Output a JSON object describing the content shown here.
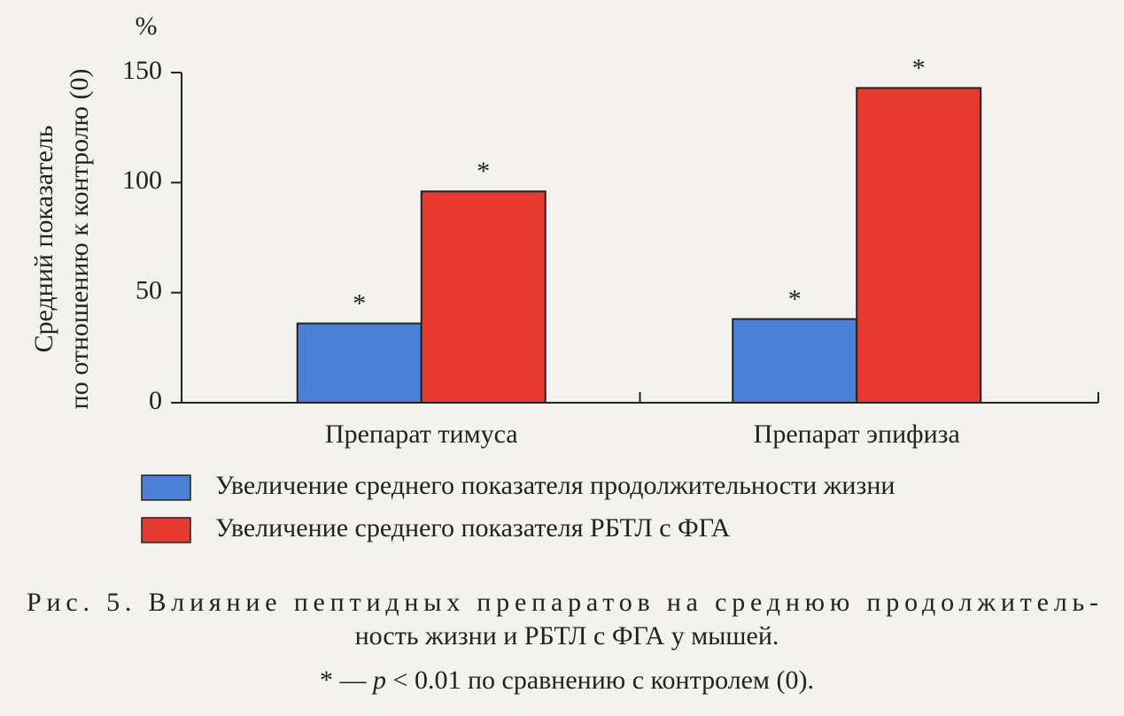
{
  "chart_data": {
    "type": "bar",
    "yunit": "%",
    "ylabel": [
      "Средний показатель",
      "по отношению к контролю (0)"
    ],
    "categories": [
      "Препарат тимуса",
      "Препарат эпифиза"
    ],
    "series": [
      {
        "name": "Увеличение среднего показателя продолжительности жизни",
        "color": "#4a80d6",
        "values": [
          36,
          38
        ],
        "annotations": [
          "*",
          "*"
        ]
      },
      {
        "name": "Увеличение среднего показателя РБТЛ с ФГА",
        "color": "#e63a30",
        "values": [
          96,
          143
        ],
        "annotations": [
          "*",
          "*"
        ]
      }
    ],
    "ylim": [
      0,
      150
    ],
    "yticks": [
      0,
      50,
      100,
      150
    ],
    "caption": [
      "Рис. 5. Влияние пептидных препаратов на среднюю продолжитель-",
      "ность жизни и РБТЛ с ФГА у мышей."
    ],
    "note": [
      "* — ",
      "p",
      " < 0.01 по сравнению с контролем (0)."
    ]
  }
}
